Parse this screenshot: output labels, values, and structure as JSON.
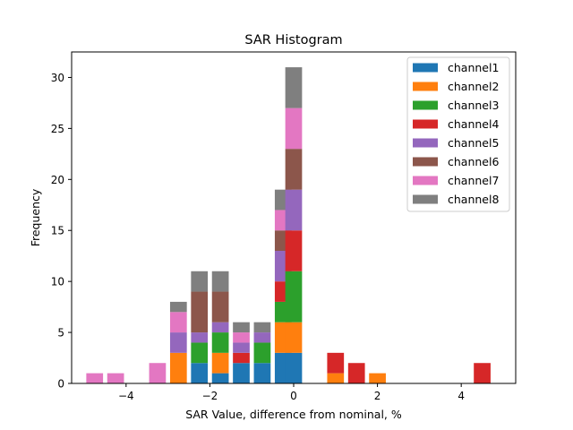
{
  "chart_data": {
    "type": "bar",
    "stacked": true,
    "title": "SAR Histogram",
    "xlabel": "SAR Value, difference from nominal, %",
    "ylabel": "Frequency",
    "xlim": [
      -5.3,
      5.3
    ],
    "ylim": [
      0,
      32.5
    ],
    "xticks": [
      -4,
      -2,
      0,
      2,
      4
    ],
    "xtick_labels": [
      "−4",
      "−2",
      "0",
      "2",
      "4"
    ],
    "yticks": [
      0,
      5,
      10,
      15,
      20,
      25,
      30
    ],
    "ytick_labels": [
      "0",
      "5",
      "10",
      "15",
      "20",
      "25",
      "30"
    ],
    "bar_width": 0.4,
    "legend_position": "top-right",
    "x": [
      -4.75,
      -4.25,
      -3.25,
      -2.75,
      -2.25,
      -1.75,
      -1.25,
      -0.75,
      -0.25,
      0.0,
      1.0,
      1.5,
      2.0,
      4.5
    ],
    "series": [
      {
        "name": "channel1",
        "color": "#1f77b4",
        "values": [
          0,
          0,
          0,
          0,
          2,
          1,
          2,
          2,
          3,
          3,
          0,
          0,
          0,
          0
        ]
      },
      {
        "name": "channel2",
        "color": "#ff7f0e",
        "values": [
          0,
          0,
          0,
          3,
          0,
          2,
          0,
          0,
          3,
          3,
          1,
          0,
          1,
          0
        ]
      },
      {
        "name": "channel3",
        "color": "#2ca02c",
        "values": [
          0,
          0,
          0,
          0,
          2,
          2,
          0,
          2,
          2,
          5,
          0,
          0,
          0,
          0
        ]
      },
      {
        "name": "channel4",
        "color": "#d62728",
        "values": [
          0,
          0,
          0,
          0,
          0,
          0,
          1,
          0,
          2,
          4,
          2,
          2,
          0,
          2
        ]
      },
      {
        "name": "channel5",
        "color": "#9467bd",
        "values": [
          0,
          0,
          0,
          2,
          1,
          1,
          1,
          1,
          3,
          4,
          0,
          0,
          0,
          0
        ]
      },
      {
        "name": "channel6",
        "color": "#8c564b",
        "values": [
          0,
          0,
          0,
          0,
          4,
          3,
          0,
          0,
          2,
          4,
          0,
          0,
          0,
          0
        ]
      },
      {
        "name": "channel7",
        "color": "#e377c2",
        "values": [
          1,
          1,
          2,
          2,
          0,
          0,
          1,
          0,
          2,
          4,
          0,
          0,
          0,
          0
        ]
      },
      {
        "name": "channel8",
        "color": "#7f7f7f",
        "values": [
          0,
          0,
          0,
          1,
          2,
          2,
          1,
          1,
          2,
          4,
          0,
          0,
          0,
          0
        ]
      }
    ]
  }
}
